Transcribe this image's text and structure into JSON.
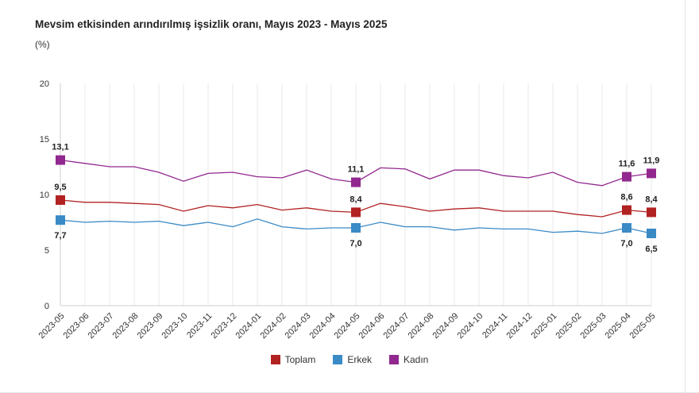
{
  "chart_data": {
    "type": "line",
    "title": "Mevsim etkisinden arındırılmış işsizlik oranı, Mayıs 2023 - Mayıs 2025",
    "unit": "(%)",
    "ylim": [
      0,
      20
    ],
    "yticks": [
      "0",
      "5",
      "10",
      "15",
      "20"
    ],
    "grid": "vertical",
    "legend_position": "bottom-center",
    "categories": [
      "2023-05",
      "2023-06",
      "2023-07",
      "2023-08",
      "2023-09",
      "2023-10",
      "2023-11",
      "2023-12",
      "2024-01",
      "2024-02",
      "2024-03",
      "2024-04",
      "2024-05",
      "2024-06",
      "2024-07",
      "2024-08",
      "2024-09",
      "2024-10",
      "2024-11",
      "2024-12",
      "2025-01",
      "2025-02",
      "2025-03",
      "2025-04",
      "2025-05"
    ],
    "series": [
      {
        "name": "Toplam",
        "color": "#b22222",
        "values": [
          9.5,
          9.3,
          9.3,
          9.2,
          9.1,
          8.5,
          9.0,
          8.8,
          9.1,
          8.6,
          8.8,
          8.5,
          8.4,
          9.2,
          8.9,
          8.5,
          8.7,
          8.8,
          8.5,
          8.5,
          8.5,
          8.2,
          8.0,
          8.6,
          8.4
        ],
        "labels": [
          {
            "index": 0,
            "text": "9,5",
            "pos": "above"
          },
          {
            "index": 12,
            "text": "8,4",
            "pos": "above"
          },
          {
            "index": 23,
            "text": "8,6",
            "pos": "above"
          },
          {
            "index": 24,
            "text": "8,4",
            "pos": "above"
          }
        ]
      },
      {
        "name": "Erkek",
        "color": "#3a8ac6",
        "values": [
          7.7,
          7.5,
          7.6,
          7.5,
          7.6,
          7.2,
          7.5,
          7.1,
          7.8,
          7.1,
          6.9,
          7.0,
          7.0,
          7.5,
          7.1,
          7.1,
          6.8,
          7.0,
          6.9,
          6.9,
          6.6,
          6.7,
          6.5,
          7.0,
          6.5
        ],
        "labels": [
          {
            "index": 0,
            "text": "7,7",
            "pos": "below"
          },
          {
            "index": 12,
            "text": "7,0",
            "pos": "below"
          },
          {
            "index": 23,
            "text": "7,0",
            "pos": "below"
          },
          {
            "index": 24,
            "text": "6,5",
            "pos": "below"
          }
        ]
      },
      {
        "name": "Kadın",
        "color": "#92278f",
        "values": [
          13.1,
          12.8,
          12.5,
          12.5,
          12.0,
          11.2,
          11.9,
          12.0,
          11.6,
          11.5,
          12.2,
          11.4,
          11.1,
          12.4,
          12.3,
          11.4,
          12.2,
          12.2,
          11.7,
          11.5,
          12.0,
          11.1,
          10.8,
          11.6,
          11.9
        ],
        "labels": [
          {
            "index": 0,
            "text": "13,1",
            "pos": "above"
          },
          {
            "index": 12,
            "text": "11,1",
            "pos": "above"
          },
          {
            "index": 23,
            "text": "11,6",
            "pos": "above"
          },
          {
            "index": 24,
            "text": "11,9",
            "pos": "above"
          }
        ]
      }
    ],
    "marker_indices": [
      0,
      12,
      23,
      24
    ]
  },
  "legend": {
    "items": [
      {
        "label": "Toplam",
        "color": "#b22222"
      },
      {
        "label": "Erkek",
        "color": "#3a8ac6"
      },
      {
        "label": "Kadın",
        "color": "#92278f"
      }
    ]
  }
}
